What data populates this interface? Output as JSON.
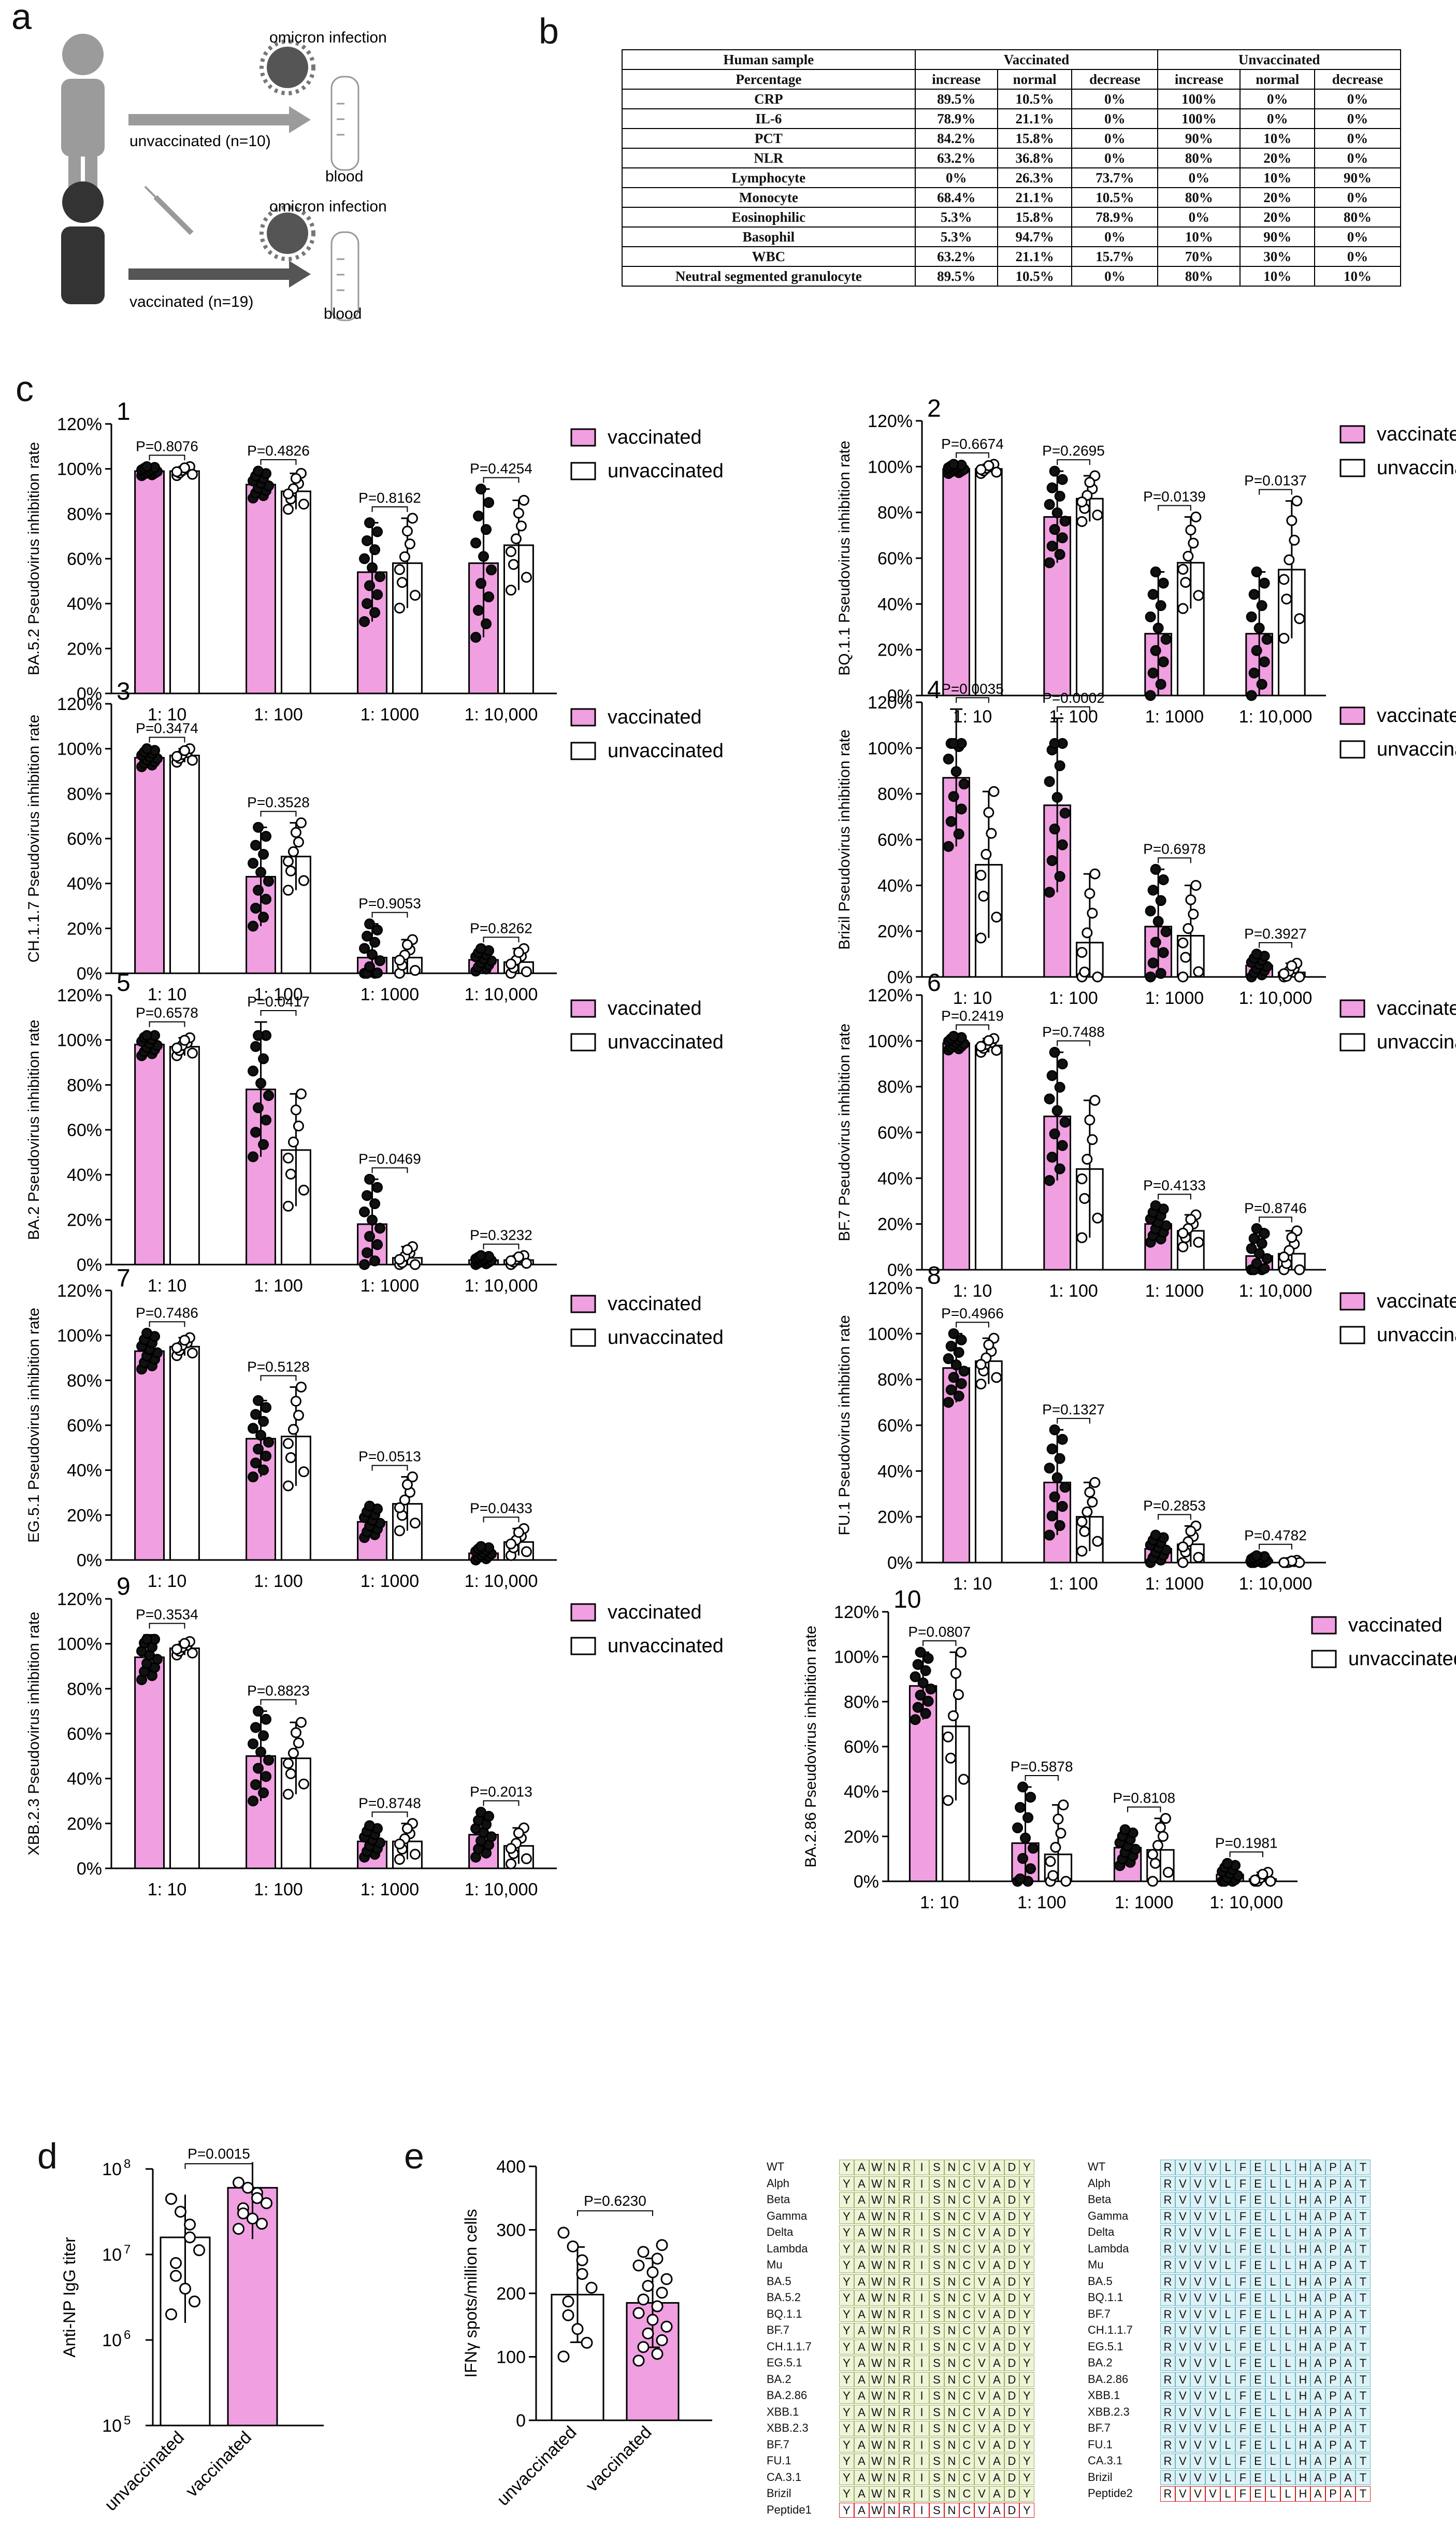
{
  "colors": {
    "vaccinated_fill": "#f09fe0",
    "unvaccinated_fill": "#ffffff",
    "stroke": "#111111"
  },
  "panel_letters": {
    "a": "a",
    "b": "b",
    "c": "c",
    "d": "d",
    "e": "e"
  },
  "panel_a": {
    "top": {
      "infection": "omicron infection",
      "group": "unvaccinated (n=10)",
      "sample": "blood"
    },
    "bottom": {
      "infection": "omicron infection",
      "group": "vaccinated (n=19)",
      "sample": "blood"
    }
  },
  "table_b": {
    "header1": [
      "Human sample",
      "Vaccinated",
      "Unvaccinated"
    ],
    "header2": [
      "Percentage",
      "increase",
      "normal",
      "decrease",
      "increase",
      "normal",
      "decrease"
    ],
    "rows": [
      [
        "CRP",
        "89.5%",
        "10.5%",
        "0%",
        "100%",
        "0%",
        "0%"
      ],
      [
        "IL-6",
        "78.9%",
        "21.1%",
        "0%",
        "100%",
        "0%",
        "0%"
      ],
      [
        "PCT",
        "84.2%",
        "15.8%",
        "0%",
        "90%",
        "10%",
        "0%"
      ],
      [
        "NLR",
        "63.2%",
        "36.8%",
        "0%",
        "80%",
        "20%",
        "0%"
      ],
      [
        "Lymphocyte",
        "0%",
        "26.3%",
        "73.7%",
        "0%",
        "10%",
        "90%"
      ],
      [
        "Monocyte",
        "68.4%",
        "21.1%",
        "10.5%",
        "80%",
        "20%",
        "0%"
      ],
      [
        "Eosinophilic",
        "5.3%",
        "15.8%",
        "78.9%",
        "0%",
        "20%",
        "80%"
      ],
      [
        "Basophil",
        "5.3%",
        "94.7%",
        "0%",
        "10%",
        "90%",
        "0%"
      ],
      [
        "WBC",
        "63.2%",
        "21.1%",
        "15.7%",
        "70%",
        "30%",
        "0%"
      ],
      [
        "Neutral segmented granulocyte",
        "89.5%",
        "10.5%",
        "0%",
        "80%",
        "10%",
        "10%"
      ]
    ]
  },
  "chart_data": [
    {
      "id": "1",
      "type": "bar",
      "ylabel": "BA.5.2 Pseudovirus inhibition rate",
      "categories": [
        "1: 10",
        "1: 100",
        "1: 1000",
        "1: 10,000"
      ],
      "yticks": [
        "0%",
        "20%",
        "40%",
        "60%",
        "80%",
        "100%",
        "120%"
      ],
      "ylim": [
        0,
        120
      ],
      "legend": [
        "vaccinated",
        "unvaccinated"
      ],
      "series": [
        {
          "name": "vaccinated",
          "values": [
            99,
            93,
            54,
            58
          ],
          "sd": [
            2,
            6,
            22,
            33
          ]
        },
        {
          "name": "unvaccinated",
          "values": [
            99,
            90,
            58,
            66
          ],
          "sd": [
            2,
            8,
            20,
            20
          ]
        }
      ],
      "pvalues": [
        "P=0.8076",
        "P=0.4826",
        "P=0.8162",
        "P=0.4254"
      ]
    },
    {
      "id": "2",
      "type": "bar",
      "ylabel": "BQ.1.1 Pseudovirus inhibition rate",
      "categories": [
        "1: 10",
        "1: 100",
        "1: 1000",
        "1: 10,000"
      ],
      "yticks": [
        "0%",
        "20%",
        "40%",
        "60%",
        "80%",
        "100%",
        "120%"
      ],
      "ylim": [
        0,
        120
      ],
      "legend": [
        "vaccinated",
        "unvaccinated"
      ],
      "series": [
        {
          "name": "vaccinated",
          "values": [
            99,
            78,
            27,
            27
          ],
          "sd": [
            2,
            20,
            27,
            27
          ]
        },
        {
          "name": "unvaccinated",
          "values": [
            99,
            86,
            58,
            55
          ],
          "sd": [
            2,
            10,
            20,
            30
          ]
        }
      ],
      "pvalues": [
        "P=0.6674",
        "P=0.2695",
        "P=0.0139",
        "P=0.0137"
      ]
    },
    {
      "id": "3",
      "type": "bar",
      "ylabel": "CH.1.1.7 Pseudovirus inhibition rate",
      "categories": [
        "1: 10",
        "1: 100",
        "1: 1000",
        "1: 10,000"
      ],
      "yticks": [
        "0%",
        "20%",
        "40%",
        "60%",
        "80%",
        "100%",
        "120%"
      ],
      "ylim": [
        0,
        120
      ],
      "legend": [
        "vaccinated",
        "unvaccinated"
      ],
      "series": [
        {
          "name": "vaccinated",
          "values": [
            96,
            43,
            7,
            6
          ],
          "sd": [
            4,
            22,
            15,
            5
          ]
        },
        {
          "name": "unvaccinated",
          "values": [
            97,
            52,
            7,
            5
          ],
          "sd": [
            3,
            15,
            8,
            6
          ]
        }
      ],
      "pvalues": [
        "P=0.3474",
        "P=0.3528",
        "P=0.9053",
        "P=0.8262"
      ]
    },
    {
      "id": "4",
      "type": "bar",
      "ylabel": "Brizil Pseudovirus inhibition rate",
      "categories": [
        "1: 10",
        "1: 100",
        "1: 1000",
        "1: 10,000"
      ],
      "yticks": [
        "0%",
        "20%",
        "40%",
        "60%",
        "80%",
        "100%",
        "120%"
      ],
      "ylim": [
        0,
        120
      ],
      "legend": [
        "vaccinated",
        "unvaccinated"
      ],
      "series": [
        {
          "name": "vaccinated",
          "values": [
            87,
            75,
            22,
            5
          ],
          "sd": [
            30,
            38,
            25,
            5
          ]
        },
        {
          "name": "unvaccinated",
          "values": [
            49,
            15,
            18,
            2
          ],
          "sd": [
            32,
            30,
            22,
            4
          ]
        }
      ],
      "pvalues": [
        "P=0.0035",
        "P=0.0002",
        "P=0.6978",
        "P=0.3927"
      ]
    },
    {
      "id": "5",
      "type": "bar",
      "ylabel": "BA.2 Pseudovirus inhibition rate",
      "categories": [
        "1: 10",
        "1: 100",
        "1: 1000",
        "1: 10,000"
      ],
      "yticks": [
        "0%",
        "20%",
        "40%",
        "60%",
        "80%",
        "100%",
        "120%"
      ],
      "ylim": [
        0,
        120
      ],
      "legend": [
        "vaccinated",
        "unvaccinated"
      ],
      "series": [
        {
          "name": "vaccinated",
          "values": [
            98,
            78,
            18,
            2
          ],
          "sd": [
            5,
            30,
            20,
            2
          ]
        },
        {
          "name": "unvaccinated",
          "values": [
            97,
            51,
            3,
            2
          ],
          "sd": [
            4,
            25,
            5,
            2
          ]
        }
      ],
      "pvalues": [
        "P=0.6578",
        "P=0.0417",
        "P=0.0469",
        "P=0.3232"
      ]
    },
    {
      "id": "6",
      "type": "bar",
      "ylabel": "BF.7 Pseudovirus inhibition rate",
      "categories": [
        "1: 10",
        "1: 100",
        "1: 1000",
        "1: 10,000"
      ],
      "yticks": [
        "0%",
        "20%",
        "40%",
        "60%",
        "80%",
        "100%",
        "120%"
      ],
      "ylim": [
        0,
        120
      ],
      "legend": [
        "vaccinated",
        "unvaccinated"
      ],
      "series": [
        {
          "name": "vaccinated",
          "values": [
            99,
            67,
            20,
            6
          ],
          "sd": [
            3,
            28,
            8,
            12
          ]
        },
        {
          "name": "unvaccinated",
          "values": [
            98,
            44,
            17,
            7
          ],
          "sd": [
            3,
            30,
            7,
            10
          ]
        }
      ],
      "pvalues": [
        "P=0.2419",
        "P=0.7488",
        "P=0.4133",
        "P=0.8746"
      ]
    },
    {
      "id": "7",
      "type": "bar",
      "ylabel": "EG.5.1 Pseudovirus inhibition rate",
      "categories": [
        "1: 10",
        "1: 100",
        "1: 1000",
        "1: 10,000"
      ],
      "yticks": [
        "0%",
        "20%",
        "40%",
        "60%",
        "80%",
        "100%",
        "120%"
      ],
      "ylim": [
        0,
        120
      ],
      "legend": [
        "vaccinated",
        "unvaccinated"
      ],
      "series": [
        {
          "name": "vaccinated",
          "values": [
            93,
            54,
            17,
            3
          ],
          "sd": [
            8,
            17,
            7,
            3
          ]
        },
        {
          "name": "unvaccinated",
          "values": [
            95,
            55,
            25,
            8
          ],
          "sd": [
            4,
            22,
            12,
            6
          ]
        }
      ],
      "pvalues": [
        "P=0.7486",
        "P=0.5128",
        "P=0.0513",
        "P=0.0433"
      ]
    },
    {
      "id": "8",
      "type": "bar",
      "ylabel": "FU.1 Pseudovirus inhibition rate",
      "categories": [
        "1: 10",
        "1: 100",
        "1: 1000",
        "1: 10,000"
      ],
      "yticks": [
        "0%",
        "20%",
        "40%",
        "60%",
        "80%",
        "100%",
        "120%"
      ],
      "ylim": [
        0,
        120
      ],
      "legend": [
        "vaccinated",
        "unvaccinated"
      ],
      "series": [
        {
          "name": "vaccinated",
          "values": [
            85,
            35,
            6,
            1
          ],
          "sd": [
            15,
            23,
            6,
            2
          ]
        },
        {
          "name": "unvaccinated",
          "values": [
            88,
            20,
            8,
            0
          ],
          "sd": [
            10,
            15,
            8,
            1
          ]
        }
      ],
      "pvalues": [
        "P=0.4966",
        "P=0.1327",
        "P=0.2853",
        "P=0.4782"
      ]
    },
    {
      "id": "9",
      "type": "bar",
      "ylabel": "XBB.2.3 Pseudovirus inhibition rate",
      "categories": [
        "1: 10",
        "1: 100",
        "1: 1000",
        "1: 10,000"
      ],
      "yticks": [
        "0%",
        "20%",
        "40%",
        "60%",
        "80%",
        "100%",
        "120%"
      ],
      "ylim": [
        0,
        120
      ],
      "legend": [
        "vaccinated",
        "unvaccinated"
      ],
      "series": [
        {
          "name": "vaccinated",
          "values": [
            94,
            50,
            12,
            15
          ],
          "sd": [
            10,
            20,
            7,
            10
          ]
        },
        {
          "name": "unvaccinated",
          "values": [
            98,
            49,
            12,
            10
          ],
          "sd": [
            3,
            16,
            8,
            8
          ]
        }
      ],
      "pvalues": [
        "P=0.3534",
        "P=0.8823",
        "P=0.8748",
        "P=0.2013"
      ]
    },
    {
      "id": "10",
      "type": "bar",
      "ylabel": "BA.2.86 Pseudovirus inhibition rate",
      "categories": [
        "1: 10",
        "1: 100",
        "1: 1000",
        "1: 10,000"
      ],
      "yticks": [
        "0%",
        "20%",
        "40%",
        "60%",
        "80%",
        "100%",
        "120%"
      ],
      "ylim": [
        0,
        120
      ],
      "legend": [
        "vaccinated",
        "unvaccinated"
      ],
      "series": [
        {
          "name": "vaccinated",
          "values": [
            87,
            17,
            15,
            3
          ],
          "sd": [
            15,
            25,
            8,
            5
          ]
        },
        {
          "name": "unvaccinated",
          "values": [
            69,
            12,
            14,
            1
          ],
          "sd": [
            33,
            22,
            14,
            3
          ]
        }
      ],
      "pvalues": [
        "P=0.0807",
        "P=0.5878",
        "P=0.8108",
        "P=0.1981"
      ]
    },
    {
      "id": "d",
      "type": "bar",
      "scale": "log10",
      "ylabel": "Anti-NP IgG titer",
      "categories": [
        "unvaccinated",
        "vaccinated"
      ],
      "ytick_exponents": [
        5,
        6,
        7,
        8
      ],
      "yrange_log10": [
        5,
        8
      ],
      "values_log10": [
        7.2,
        7.78
      ],
      "sd_log10": [
        0.5,
        0.3
      ],
      "pvalue": "P=0.0015"
    },
    {
      "id": "e",
      "type": "bar",
      "ylabel": "IFNγ spots/million cells",
      "categories": [
        "unvaccinated",
        "vaccinated"
      ],
      "yticks": [
        "0",
        "100",
        "200",
        "300",
        "400"
      ],
      "ylim": [
        0,
        400
      ],
      "values": [
        198,
        185
      ],
      "sd": [
        75,
        70
      ],
      "pvalue": "P=0.6230"
    }
  ],
  "alignment": {
    "variants": [
      "WT",
      "Alph",
      "Beta",
      "Gamma",
      "Delta",
      "Lambda",
      "Mu",
      "BA.5",
      "BA.5.2",
      "BQ.1.1",
      "BF.7",
      "CH.1.1.7",
      "EG.5.1",
      "BA.2",
      "BA.2.86",
      "XBB.1",
      "XBB.2.3",
      "BF.7",
      "FU.1",
      "CA.3.1",
      "Brizil"
    ],
    "peptide1_name": "Peptide1",
    "peptide1": [
      "Y",
      "A",
      "W",
      "N",
      "R",
      "I",
      "S",
      "N",
      "C",
      "V",
      "A",
      "D",
      "Y"
    ],
    "variants2": [
      "WT",
      "Alph",
      "Beta",
      "Gamma",
      "Delta",
      "Lambda",
      "Mu",
      "BA.5",
      "BQ.1.1",
      "BF.7",
      "CH.1.1.7",
      "EG.5.1",
      "BA.2",
      "BA.2.86",
      "XBB.1",
      "XBB.2.3",
      "BF.7",
      "FU.1",
      "CA.3.1",
      "Brizil"
    ],
    "peptide2_name": "Peptide2",
    "peptide2": [
      "R",
      "V",
      "V",
      "V",
      "L",
      "F",
      "E",
      "L",
      "L",
      "H",
      "A",
      "P",
      "A",
      "T"
    ]
  }
}
